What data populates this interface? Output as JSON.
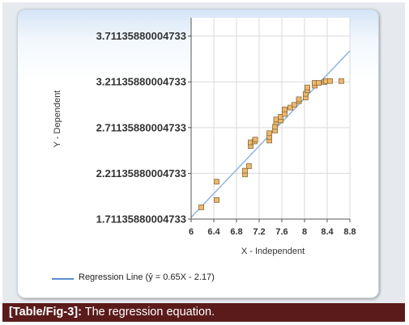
{
  "caption": {
    "label": "[Table/Fig-3]:",
    "text": " The regression equation."
  },
  "legend": {
    "entry": "Regression Line (ŷ = 0.65X - 2.17)"
  },
  "colors": {
    "point_fill": "#ecb86b",
    "point_stroke": "#8a6a3c",
    "line": "#8fb4e3",
    "grid": "#d9d9d9",
    "caption_bg": "#5b1b1b"
  },
  "chart_data": {
    "type": "scatter",
    "xlabel": "X - Independent",
    "ylabel": "Y - Dependent",
    "xlim": [
      6,
      8.8
    ],
    "ylim": [
      1.71135880004733,
      3.91135880004733
    ],
    "x_ticks": [
      "6",
      "6.4",
      "6.8",
      "7.2",
      "7.6",
      "8",
      "8.4",
      "8.8"
    ],
    "x_tick_values": [
      6,
      6.4,
      6.8,
      7.2,
      7.6,
      8,
      8.4,
      8.8
    ],
    "y_ticks": [
      "1.71135880004733",
      "2.21135880004733",
      "2.71135880004733",
      "3.21135880004733",
      "3.71135880004733"
    ],
    "y_tick_values": [
      1.71135880004733,
      2.21135880004733,
      2.71135880004733,
      3.21135880004733,
      3.71135880004733
    ],
    "grid": true,
    "regression": {
      "slope": 0.65,
      "intercept": -2.17,
      "label": "Regression Line (ŷ = 0.65X - 2.17)"
    },
    "points": [
      {
        "x": 6.18,
        "y": 1.84
      },
      {
        "x": 6.45,
        "y": 1.92
      },
      {
        "x": 6.45,
        "y": 2.12
      },
      {
        "x": 6.95,
        "y": 2.2
      },
      {
        "x": 6.95,
        "y": 2.24
      },
      {
        "x": 7.02,
        "y": 2.29
      },
      {
        "x": 7.05,
        "y": 2.51
      },
      {
        "x": 7.05,
        "y": 2.55
      },
      {
        "x": 7.12,
        "y": 2.56
      },
      {
        "x": 7.13,
        "y": 2.58
      },
      {
        "x": 7.38,
        "y": 2.57
      },
      {
        "x": 7.38,
        "y": 2.61
      },
      {
        "x": 7.38,
        "y": 2.65
      },
      {
        "x": 7.48,
        "y": 2.68
      },
      {
        "x": 7.48,
        "y": 2.72
      },
      {
        "x": 7.5,
        "y": 2.77
      },
      {
        "x": 7.5,
        "y": 2.8
      },
      {
        "x": 7.58,
        "y": 2.79
      },
      {
        "x": 7.58,
        "y": 2.83
      },
      {
        "x": 7.65,
        "y": 2.86
      },
      {
        "x": 7.65,
        "y": 2.91
      },
      {
        "x": 7.75,
        "y": 2.93
      },
      {
        "x": 7.82,
        "y": 2.96
      },
      {
        "x": 7.9,
        "y": 3.0
      },
      {
        "x": 7.9,
        "y": 3.02
      },
      {
        "x": 8.02,
        "y": 3.04
      },
      {
        "x": 8.02,
        "y": 3.08
      },
      {
        "x": 8.05,
        "y": 3.12
      },
      {
        "x": 8.05,
        "y": 3.15
      },
      {
        "x": 8.18,
        "y": 3.17
      },
      {
        "x": 8.18,
        "y": 3.2
      },
      {
        "x": 8.25,
        "y": 3.2
      },
      {
        "x": 8.35,
        "y": 3.21
      },
      {
        "x": 8.38,
        "y": 3.22
      },
      {
        "x": 8.45,
        "y": 3.22
      },
      {
        "x": 8.65,
        "y": 3.22
      }
    ]
  }
}
